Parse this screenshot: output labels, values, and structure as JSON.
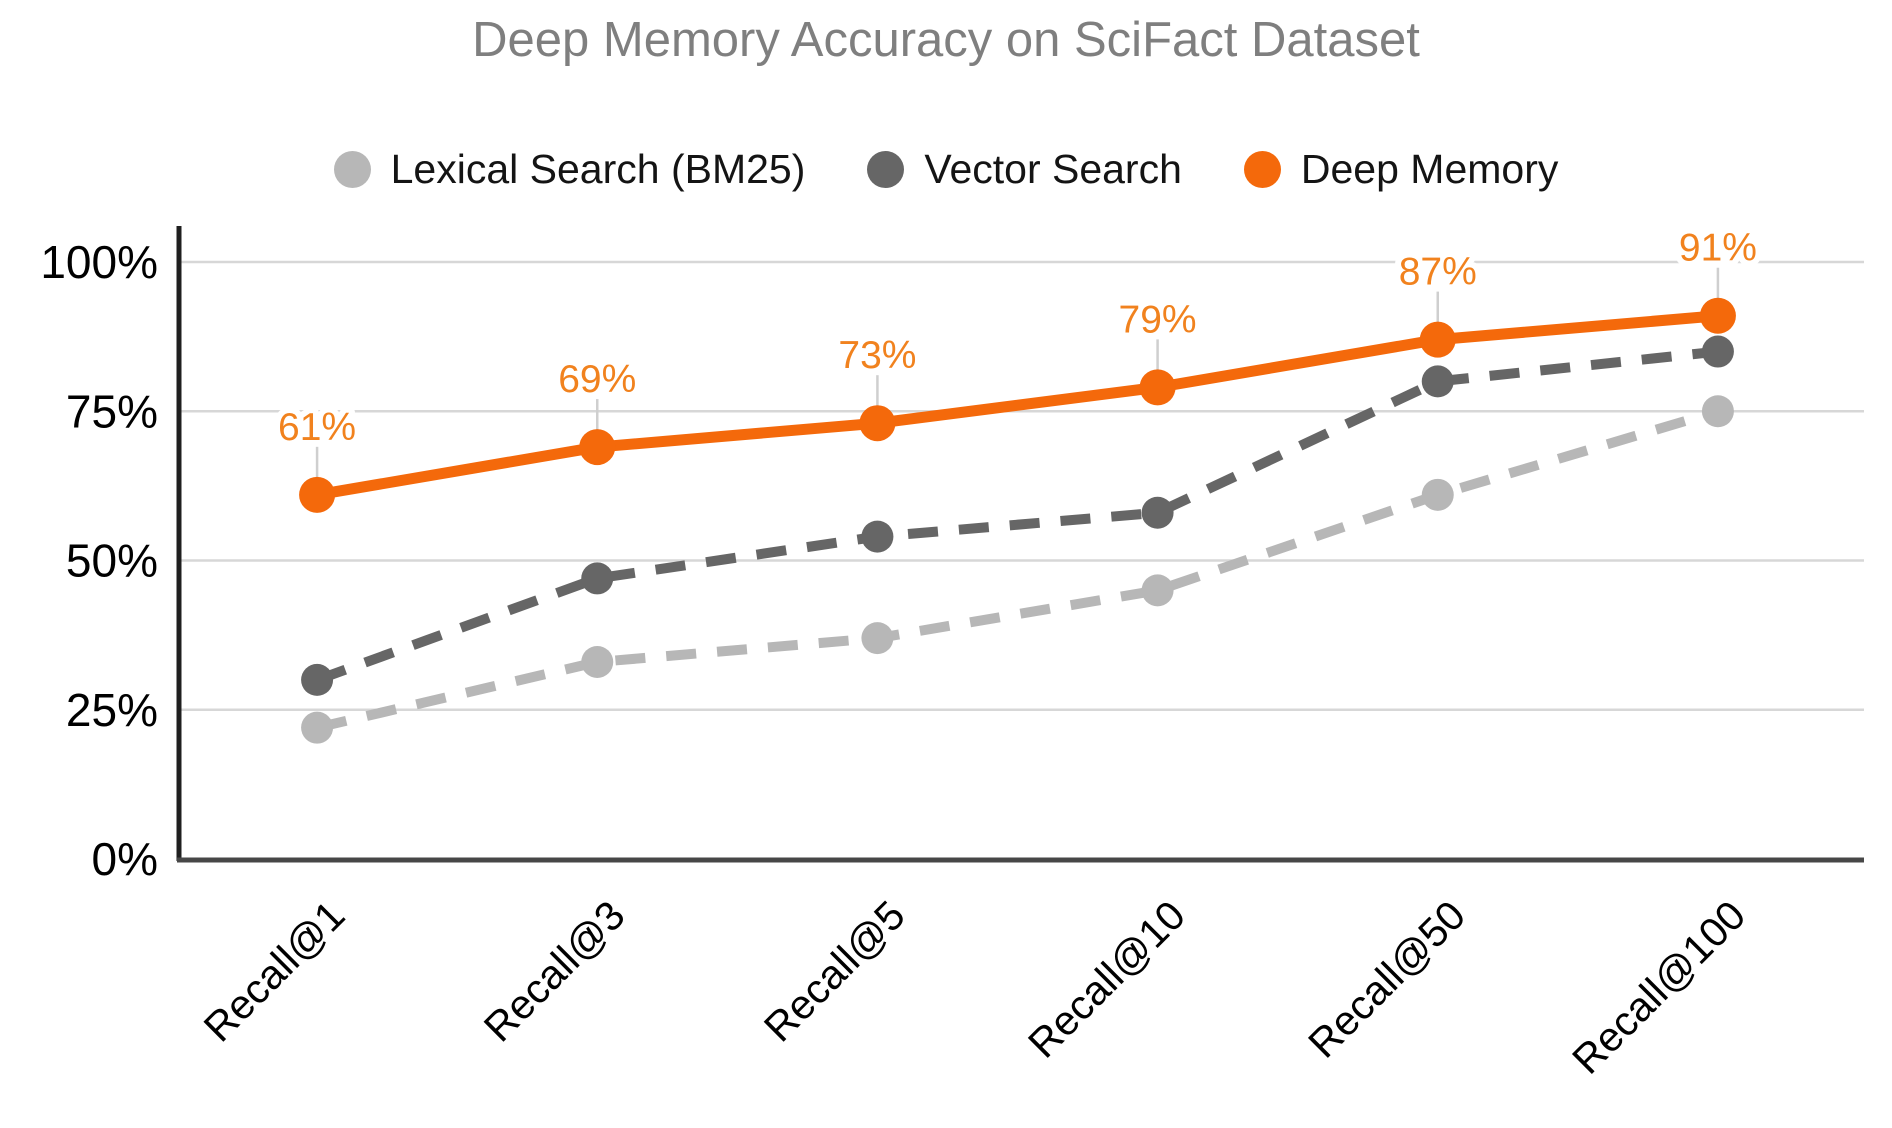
{
  "title": "Deep Memory Accuracy on SciFact Dataset",
  "chart_data": {
    "type": "line",
    "title": "Deep Memory Accuracy on SciFact Dataset",
    "categories": [
      "Recall@1",
      "Recall@3",
      "Recall@5",
      "Recall@10",
      "Recall@50",
      "Recall@100"
    ],
    "series": [
      {
        "name": "Lexical Search (BM25)",
        "values": [
          22,
          33,
          37,
          45,
          61,
          75
        ],
        "color": "#b7b7b7",
        "line_style": "dashed",
        "show_data_labels": false
      },
      {
        "name": "Vector Search",
        "values": [
          30,
          47,
          54,
          58,
          80,
          85
        ],
        "color": "#666666",
        "line_style": "dashed",
        "show_data_labels": false
      },
      {
        "name": "Deep Memory",
        "values": [
          61,
          69,
          73,
          79,
          87,
          91
        ],
        "color": "#f4690b",
        "line_style": "solid",
        "show_data_labels": true,
        "data_label_texts": [
          "61%",
          "69%",
          "73%",
          "79%",
          "87%",
          "91%"
        ]
      }
    ],
    "y_ticks": [
      "0%",
      "25%",
      "50%",
      "75%",
      "100%"
    ],
    "ylim": [
      0,
      100
    ],
    "xlabel": "",
    "ylabel": "",
    "grid": "horizontal",
    "legend_position": "top",
    "x_label_rotation_deg": -45
  },
  "style": {
    "title_color": "#7f7f7f",
    "tick_label_color": "#000000",
    "legend_text_color": "#141414",
    "gridline_color": "#d7d7d7",
    "left_axis_color": "#1f1f1f",
    "bottom_axis_color": "#474747",
    "data_label_color": "#f1821e",
    "leader_line_color": "#cfcfcf",
    "background_color": "#ffffff"
  }
}
